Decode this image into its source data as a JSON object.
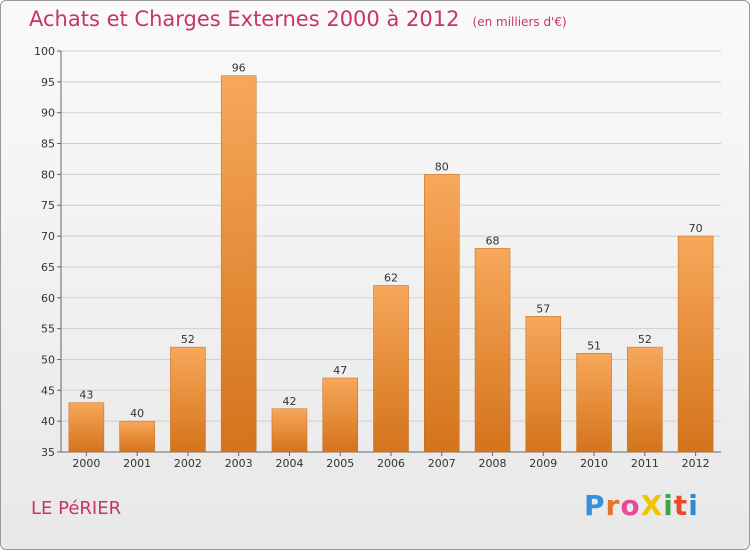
{
  "title": {
    "main": "Achats et Charges Externes 2000 à 2012",
    "unit": "(en milliers d'€)"
  },
  "commune": "LE PéRIER",
  "logo": {
    "text": "ProXiti",
    "letter_colors": [
      "#3a8fd6",
      "#e8742a",
      "#e84a9a",
      "#f1c400",
      "#3aa64a",
      "#e84a2a",
      "#2a8ad6"
    ]
  },
  "chart_data": {
    "type": "bar",
    "categories": [
      "2000",
      "2001",
      "2002",
      "2003",
      "2004",
      "2005",
      "2006",
      "2007",
      "2008",
      "2009",
      "2010",
      "2011",
      "2012"
    ],
    "values": [
      43,
      40,
      52,
      96,
      42,
      47,
      62,
      80,
      68,
      57,
      51,
      52,
      70
    ],
    "ylim": [
      35,
      100
    ],
    "yticks": [
      35,
      40,
      45,
      50,
      55,
      60,
      65,
      70,
      75,
      80,
      85,
      90,
      95,
      100
    ],
    "grid": true,
    "colors": {
      "bar_light": "#f7a85a",
      "bar_dark": "#d4731c",
      "title": "#c8336e",
      "grid": "#d0d0d0"
    }
  }
}
